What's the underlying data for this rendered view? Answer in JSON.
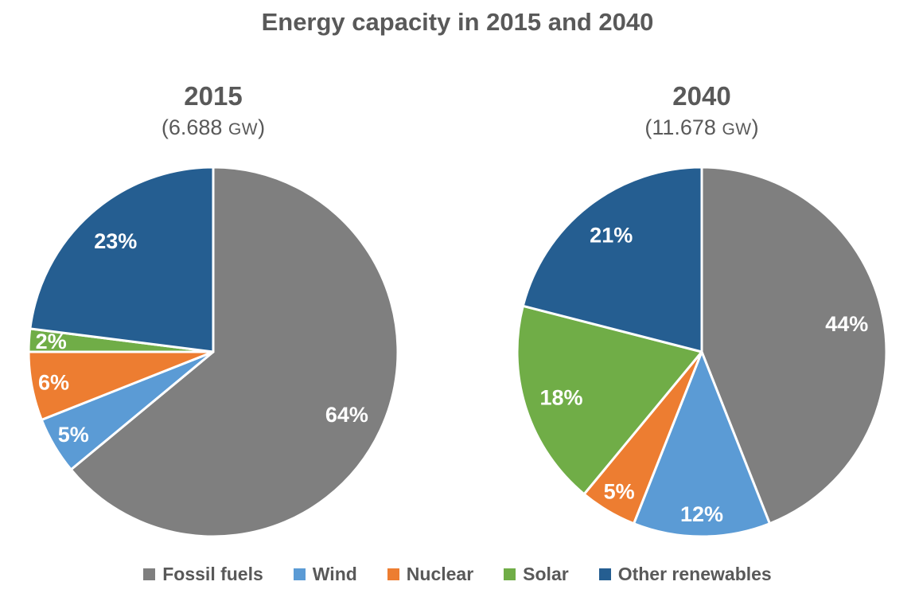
{
  "title": "Energy capacity in 2015 and 2040",
  "colors": {
    "text": "#595959",
    "slice_label": "#FFFFFF",
    "slice_border": "#FFFFFF",
    "fossil_fuels": "#7F7F7F",
    "wind": "#5B9BD5",
    "nuclear": "#ED7D31",
    "solar": "#70AD47",
    "other_renewables": "#255E91"
  },
  "legend": [
    {
      "label": "Fossil fuels",
      "color": "#7F7F7F"
    },
    {
      "label": "Wind",
      "color": "#5B9BD5"
    },
    {
      "label": "Nuclear",
      "color": "#ED7D31"
    },
    {
      "label": "Solar",
      "color": "#70AD47"
    },
    {
      "label": "Other renewables",
      "color": "#255E91"
    }
  ],
  "chart_data": [
    {
      "type": "pie",
      "title": "2015",
      "subtitle": "(6.688 GW)",
      "unit": "GW",
      "categories": [
        "Fossil fuels",
        "Wind",
        "Nuclear",
        "Solar",
        "Other renewables"
      ],
      "values": [
        64,
        5,
        6,
        2,
        23
      ],
      "labels": [
        "64%",
        "5%",
        "6%",
        "2%",
        "23%"
      ],
      "colors": [
        "#7F7F7F",
        "#5B9BD5",
        "#ED7D31",
        "#70AD47",
        "#255E91"
      ],
      "start_angle_deg": 0,
      "direction": "clockwise"
    },
    {
      "type": "pie",
      "title": "2040",
      "subtitle": "(11.678 GW)",
      "unit": "GW",
      "categories": [
        "Fossil fuels",
        "Wind",
        "Nuclear",
        "Solar",
        "Other renewables"
      ],
      "values": [
        44,
        12,
        5,
        18,
        21
      ],
      "labels": [
        "44%",
        "12%",
        "5%",
        "18%",
        "21%"
      ],
      "colors": [
        "#7F7F7F",
        "#5B9BD5",
        "#ED7D31",
        "#70AD47",
        "#255E91"
      ],
      "start_angle_deg": 0,
      "direction": "clockwise"
    }
  ]
}
